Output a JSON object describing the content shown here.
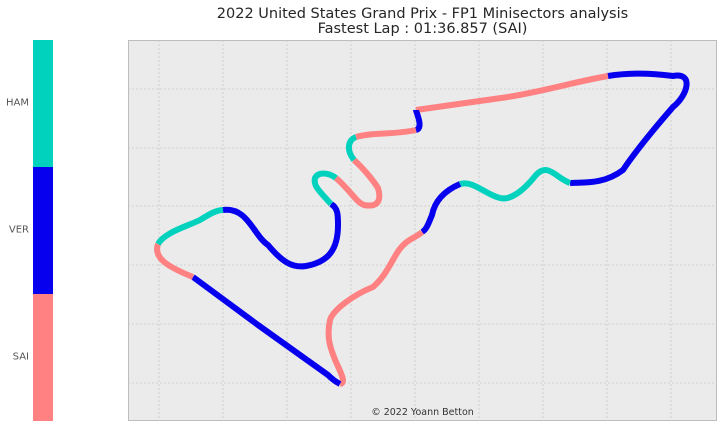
{
  "header": {
    "title_line1": "2022 United States Grand Prix - FP1 Minisectors analysis",
    "title_line2": "Fastest Lap : 01:36.857 (SAI)"
  },
  "credit": "© 2022 Yoann Betton",
  "colorbar": {
    "labels": [
      "HAM",
      "VER",
      "SAI"
    ],
    "colors": [
      "#00d2be",
      "#0600ef",
      "#ff8181"
    ]
  },
  "chart_data": {
    "type": "line",
    "description": "Track map coloured by fastest driver per minisector",
    "series": [
      {
        "name": "SAI",
        "color": "#ff8181"
      },
      {
        "name": "VER",
        "color": "#0600ef"
      },
      {
        "name": "HAM",
        "color": "#00d2be"
      }
    ],
    "grid": true,
    "legend": "colorbar-left"
  }
}
